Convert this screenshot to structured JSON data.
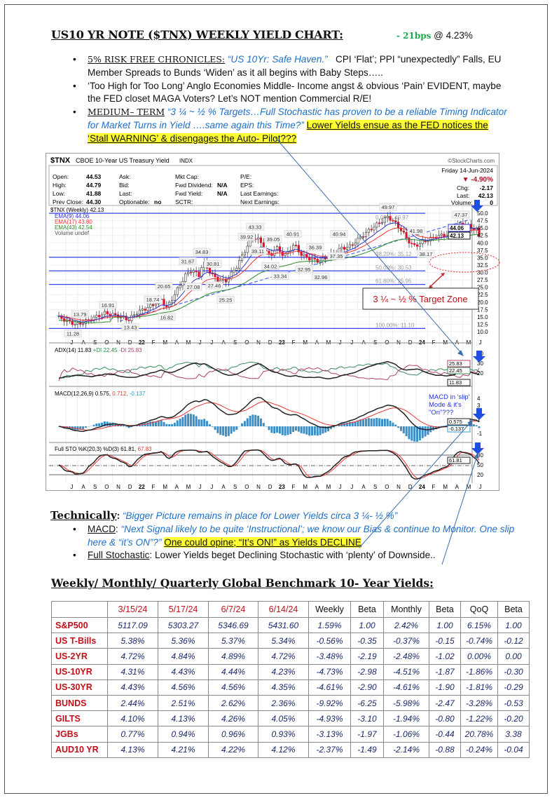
{
  "header": {
    "title": "US10 YR NOTE ($TNX) WEEKLY YIELD CHART",
    "colon": ":",
    "change": "- 21bps",
    "at": " @ 4.23%"
  },
  "bullets": [
    {
      "label": "5% RISK FREE CHRONICLES:",
      "quote": "“US 10Yr: Safe Haven.”",
      "text": "   CPI ‘Flat’; PPI “unexpectedly” Falls, EU Member Spreads to Bunds ‘Widen’ as it all begins with Baby Steps….."
    },
    {
      "text": "‘Too High for Too Long’ Anglo Economies Middle- Income angst & obvious ‘Pain’ EVIDENT, maybe the FED closet MAGA Voters? Let’s NOT mention Commercial R/E!"
    },
    {
      "label": "MEDIUM– TERM",
      "quote": " “3 ¼ ~ ½ % Targets…Full Stochastic has proven to be a reliable Timing Indicator for Market Turns in Yield ….same again this Time?”",
      "highlight": "Lower Yields ensue as the FED notices the ‘Stall WARNING’ & disengages the Auto- Pilot???"
    }
  ],
  "chart": {
    "symbol": "$TNX",
    "name": "CBOE 10-Year US Treasury Yield",
    "exchange": "INDX",
    "source": "©StockCharts.com",
    "date": "Friday 14-Jun-2024",
    "pct": "▼ -4.90%",
    "quote": {
      "open_l": "Open:",
      "open": "44.53",
      "high_l": "High:",
      "high": "44.79",
      "low_l": "Low:",
      "low": "41.88",
      "prev_l": "Prev Close:",
      "prev": "44.30",
      "ask": "Ask:",
      "bid": "Bid:",
      "last_l": "Last:",
      "opt_l": "Optionable:",
      "opt": "no",
      "mkt": "Mkt Cap:",
      "fdiv_l": "Fwd Dividend:",
      "fdiv": "N/A",
      "fy_l": "Fwd Yield:",
      "fy": "N/A",
      "sctr": "SCTR:",
      "pe": "P/E:",
      "eps": "EPS:",
      "le": "Last Earnings:",
      "ne": "Next Earnings:",
      "chg_l": "Chg:",
      "chg": "-2.17",
      "last2_l": "Last:",
      "last2": "42.13",
      "vol_l": "Volume:",
      "vol": "0"
    },
    "legend": {
      "main": "$TNX (Weekly) 42.13",
      "ema9": "EMA(9) 44.06",
      "ema17": "EMA(17) 43.80",
      "ema43": "EMA(43) 42.54",
      "vol": "Volume undef"
    },
    "tags": {
      "ema9": "44.06",
      "last": "42.13",
      "adx_m": "25.83",
      "adx_p": "22.45",
      "adx": "11.83",
      "macd": "0.575",
      "hist": "-0.137",
      "sto": "61.81"
    },
    "ind": {
      "adx": "ADX(14) 11.83",
      "pdi": "+DI 22.45",
      "mdi": "-DI 25.83",
      "macd": "MACD(12,26,9) 0.575,",
      "sig": " 0.712,",
      "hist": " -0.137",
      "sto": "Full STO %K(20,3) %D(3) 61.81,",
      "stod": " 67.83"
    },
    "fib": [
      {
        "label": "0.00%: 49.97",
        "v": 49.97
      },
      {
        "label": "38.20%: 35.12",
        "v": 35.12
      },
      {
        "label": "50.00%: 30.53",
        "v": 30.53
      },
      {
        "label": "61.80%: 25.95",
        "v": 25.95
      },
      {
        "label": "100.00%: 11.10",
        "v": 11.1
      }
    ],
    "path": [
      [
        2021.45,
        14.8
      ],
      [
        2021.58,
        12.3
      ],
      [
        2021.63,
        13.3
      ],
      [
        2021.78,
        16.3
      ],
      [
        2021.9,
        15.0
      ],
      [
        2021.95,
        14.0
      ],
      [
        2022.0,
        16.3
      ],
      [
        2022.12,
        19.0
      ],
      [
        2022.18,
        21.0
      ],
      [
        2022.22,
        18.0
      ],
      [
        2022.3,
        24.5
      ],
      [
        2022.36,
        29.5
      ],
      [
        2022.4,
        30.8
      ],
      [
        2022.45,
        29.0
      ],
      [
        2022.48,
        33.5
      ],
      [
        2022.53,
        30.0
      ],
      [
        2022.58,
        27.5
      ],
      [
        2022.64,
        27.0
      ],
      [
        2022.72,
        32.0
      ],
      [
        2022.79,
        38.5
      ],
      [
        2022.84,
        42.0
      ],
      [
        2022.88,
        41.0
      ],
      [
        2022.92,
        37.5
      ],
      [
        2022.96,
        35.5
      ],
      [
        2023.0,
        38.5
      ],
      [
        2023.06,
        35.5
      ],
      [
        2023.13,
        39.5
      ],
      [
        2023.18,
        36.0
      ],
      [
        2023.25,
        34.5
      ],
      [
        2023.31,
        33.8
      ],
      [
        2023.38,
        35.5
      ],
      [
        2023.46,
        38.0
      ],
      [
        2023.53,
        38.8
      ],
      [
        2023.6,
        41.8
      ],
      [
        2023.7,
        45.5
      ],
      [
        2023.8,
        48.8
      ],
      [
        2023.84,
        47.2
      ],
      [
        2023.89,
        44.5
      ],
      [
        2023.94,
        41.0
      ],
      [
        2023.98,
        38.8
      ],
      [
        2024.06,
        40.5
      ],
      [
        2024.15,
        42.3
      ],
      [
        2024.24,
        42.8
      ],
      [
        2024.31,
        46.5
      ],
      [
        2024.37,
        45.8
      ],
      [
        2024.42,
        44.5
      ],
      [
        2024.45,
        44.3
      ],
      [
        2024.46,
        42.13
      ]
    ],
    "peaks": [
      [
        "13.79",
        2021.6,
        13.8,
        1
      ],
      [
        "11.28",
        2021.55,
        11.3,
        0
      ],
      [
        "16.91",
        2021.8,
        16.9,
        1
      ],
      [
        "13.43",
        2021.96,
        13.4,
        0
      ],
      [
        "18.74",
        2022.12,
        18.7,
        1
      ],
      [
        "20.65",
        2022.2,
        20.7,
        1
      ],
      [
        "16.82",
        2022.22,
        16.8,
        0
      ],
      [
        "31.67",
        2022.37,
        31.7,
        1
      ],
      [
        "34.83",
        2022.47,
        34.8,
        1
      ],
      [
        "27.08",
        2022.41,
        27.1,
        0
      ],
      [
        "30.81",
        2022.55,
        30.8,
        1
      ],
      [
        "27.46",
        2022.56,
        27.5,
        0
      ],
      [
        "25.25",
        2022.64,
        25.3,
        0
      ],
      [
        "39.92",
        2022.79,
        39.9,
        1
      ],
      [
        "43.33",
        2022.85,
        43.3,
        1
      ],
      [
        "39.11",
        2022.87,
        39.1,
        0
      ],
      [
        "39.05",
        2022.98,
        39.1,
        1
      ],
      [
        "34.02",
        2022.96,
        34.0,
        0
      ],
      [
        "40.91",
        2023.12,
        40.9,
        1
      ],
      [
        "33.34",
        2023.03,
        33.3,
        0
      ],
      [
        "36.39",
        2023.28,
        36.4,
        1
      ],
      [
        "32.95",
        2023.2,
        33.0,
        0
      ],
      [
        "32.96",
        2023.32,
        33.0,
        0
      ],
      [
        "40.94",
        2023.45,
        40.9,
        1
      ],
      [
        "37.35",
        2023.43,
        37.4,
        0
      ],
      [
        "49.97",
        2023.8,
        49.97,
        1
      ],
      [
        "41.98",
        2024.0,
        42.0,
        1
      ],
      [
        "38.17",
        2024.07,
        38.2,
        0
      ],
      [
        "47.37",
        2024.32,
        47.4,
        1
      ]
    ],
    "yaxis": [
      "50.0",
      "47.5",
      "45.0",
      "42.5",
      "40.0",
      "37.5",
      "35.0",
      "32.5",
      "30.0",
      "27.5",
      "25.0",
      "22.5",
      "20.0",
      "17.5",
      "15.0",
      "12.5",
      "10.0"
    ],
    "adx_axis": [
      "40",
      "30",
      "20"
    ],
    "macd_axis": [
      "4",
      "3",
      "2",
      "1",
      "-1"
    ],
    "sto_axis": [
      "80",
      "50",
      "20"
    ],
    "months": [
      "J",
      "A",
      "S",
      "O",
      "N",
      "D",
      "22",
      "F",
      "M",
      "A",
      "M",
      "J",
      "J",
      "A",
      "S",
      "O",
      "N",
      "D",
      "23",
      "F",
      "M",
      "A",
      "M",
      "J",
      "J",
      "A",
      "S",
      "O",
      "N",
      "D",
      "24",
      "F",
      "M",
      "A",
      "M",
      "J"
    ],
    "target_zone": "3 ¼ ~ ½ % Target Zone",
    "macd_note": [
      "MACD in 'slip'",
      "Mode & it's",
      "\"On\"???"
    ]
  },
  "technical": {
    "title": "Technically",
    "colon": ":",
    "quote": " “Bigger Picture remains in place for Lower Yields circa 3 ¼- ½ %”",
    "items": [
      {
        "label": "MACD",
        "sep": ": ",
        "quote": "“Next Signal likely to be quite ‘Instructional’; we know our Bias & continue to Monitor. One slip here & “it’s ON”?” ",
        "highlight": "One could opine; “It’s ON!” as Yields DECLINE"
      },
      {
        "label": "Full Stochastic",
        "sep": ": ",
        "text": "Lower Yields beget Declining Stochastic with ‘plenty’ of Downside.."
      }
    ]
  },
  "table_title": "Weekly/ Monthly/ Quarterly Global Benchmark 10- Year Yields",
  "table_colon": ":",
  "table": {
    "headers": [
      "",
      "3/15/24",
      "5/17/24",
      "6/7/24",
      "6/14/24",
      "Weekly",
      "Beta",
      "Monthly",
      "Beta",
      "QoQ",
      "Beta"
    ],
    "rows": [
      [
        "S&P500",
        "5117.09",
        "5303.27",
        "5346.69",
        "5431.60",
        "1.59%",
        "1.00",
        "2.42%",
        "1.00",
        "6.15%",
        "1.00"
      ],
      [
        "US T-Bills",
        "5.38%",
        "5.36%",
        "5.37%",
        "5.34%",
        "-0.56%",
        "-0.35",
        "-0.37%",
        "-0.15",
        "-0.74%",
        "-0.12"
      ],
      [
        "US-2YR",
        "4.72%",
        "4.84%",
        "4.89%",
        "4.72%",
        "-3.48%",
        "-2.19",
        "-2.48%",
        "-1.02",
        "0.00%",
        "0.00"
      ],
      [
        "US-10YR",
        "4.31%",
        "4.43%",
        "4.44%",
        "4.23%",
        "-4.73%",
        "-2.98",
        "-4.51%",
        "-1.87",
        "-1.86%",
        "-0.30"
      ],
      [
        "US-30YR",
        "4.43%",
        "4.56%",
        "4.56%",
        "4.35%",
        "-4.61%",
        "-2.90",
        "-4.61%",
        "-1.90",
        "-1.81%",
        "-0.29"
      ],
      [
        "BUNDS",
        "2.44%",
        "2.51%",
        "2.62%",
        "2.36%",
        "-9.92%",
        "-6.25",
        "-5.98%",
        "-2.47",
        "-3.28%",
        "-0.53"
      ],
      [
        "GILTS",
        "4.10%",
        "4.13%",
        "4.26%",
        "4.05%",
        "-4.93%",
        "-3.10",
        "-1.94%",
        "-0.80",
        "-1.22%",
        "-0.20"
      ],
      [
        "JGBs",
        "0.77%",
        "0.94%",
        "0.96%",
        "0.93%",
        "-3.13%",
        "-1.97",
        "-1.06%",
        "-0.44",
        "20.78%",
        "3.38"
      ],
      [
        "AUD10 YR",
        "4.13%",
        "4.21%",
        "4.22%",
        "4.12%",
        "-2.37%",
        "-1.49",
        "-2.14%",
        "-0.88",
        "-0.24%",
        "-0.04"
      ]
    ]
  },
  "colors": {
    "accent_green": "#1aa84a",
    "red": "#c0101a",
    "blue": "#1f6fc4",
    "highlight": "#ffff33"
  }
}
